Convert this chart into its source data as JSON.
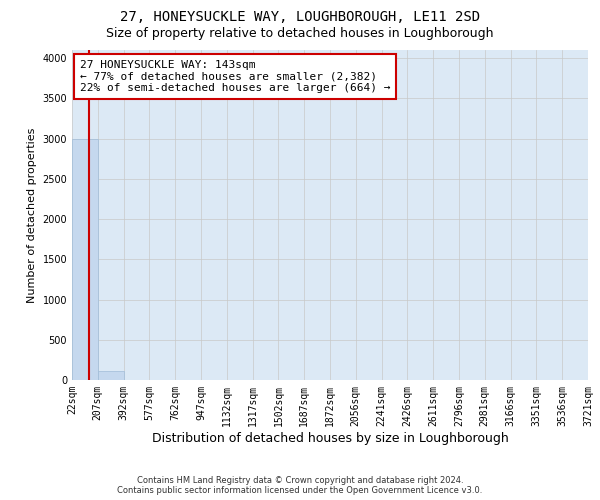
{
  "title": "27, HONEYSUCKLE WAY, LOUGHBOROUGH, LE11 2SD",
  "subtitle": "Size of property relative to detached houses in Loughborough",
  "xlabel": "Distribution of detached houses by size in Loughborough",
  "ylabel": "Number of detached properties",
  "footer_line1": "Contains HM Land Registry data © Crown copyright and database right 2024.",
  "footer_line2": "Contains public sector information licensed under the Open Government Licence v3.0.",
  "bin_edges": [
    22,
    207,
    392,
    577,
    762,
    947,
    1132,
    1317,
    1502,
    1687,
    1872,
    2056,
    2241,
    2426,
    2611,
    2796,
    2981,
    3166,
    3351,
    3536,
    3721
  ],
  "bin_labels": [
    "22sqm",
    "207sqm",
    "392sqm",
    "577sqm",
    "762sqm",
    "947sqm",
    "1132sqm",
    "1317sqm",
    "1502sqm",
    "1687sqm",
    "1872sqm",
    "2056sqm",
    "2241sqm",
    "2426sqm",
    "2611sqm",
    "2796sqm",
    "2981sqm",
    "3166sqm",
    "3351sqm",
    "3536sqm",
    "3721sqm"
  ],
  "bar_heights": [
    3000,
    110,
    5,
    3,
    2,
    2,
    1,
    1,
    1,
    1,
    1,
    0,
    0,
    0,
    0,
    0,
    0,
    0,
    0,
    0
  ],
  "bar_color": "#c5d8ee",
  "bar_edge_color": "#a0bcd8",
  "vertical_line_x": 143,
  "vertical_line_color": "#cc0000",
  "annotation_text": "27 HONEYSUCKLE WAY: 143sqm\n← 77% of detached houses are smaller (2,382)\n22% of semi-detached houses are larger (664) →",
  "annotation_box_facecolor": "#ffffff",
  "annotation_box_edgecolor": "#cc0000",
  "ylim": [
    0,
    4100
  ],
  "yticks": [
    0,
    500,
    1000,
    1500,
    2000,
    2500,
    3000,
    3500,
    4000
  ],
  "background_color": "#dce9f5",
  "grid_color": "#c8c8c8",
  "figure_facecolor": "#ffffff",
  "title_fontsize": 10,
  "subtitle_fontsize": 9,
  "tick_fontsize": 7,
  "ylabel_fontsize": 8,
  "xlabel_fontsize": 9
}
